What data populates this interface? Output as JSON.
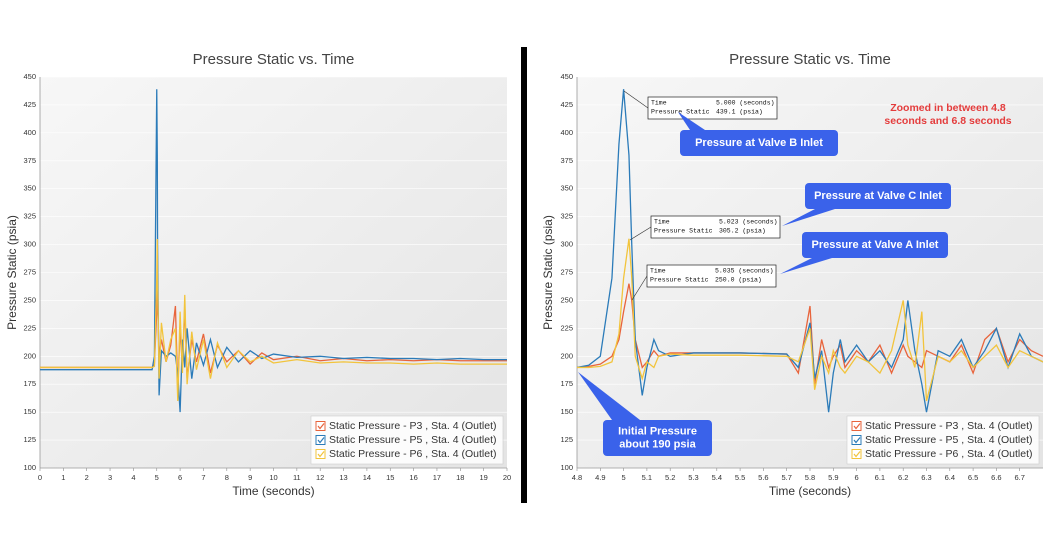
{
  "chart_data": [
    {
      "type": "line",
      "title": "Pressure Static vs. Time",
      "xlabel": "Time (seconds)",
      "ylabel": "Pressure Static (psia)",
      "xlim": [
        0,
        20
      ],
      "xticks": [
        0,
        1,
        2,
        3,
        4,
        5,
        6,
        7,
        8,
        9,
        10,
        11,
        12,
        13,
        14,
        15,
        16,
        17,
        18,
        19,
        20
      ],
      "ylim": [
        100,
        450
      ],
      "yticks": [
        100,
        125,
        150,
        175,
        200,
        225,
        250,
        275,
        300,
        325,
        350,
        375,
        400,
        425,
        450
      ],
      "grid": true,
      "legend": "lower right",
      "x": [
        0,
        4.8,
        4.9,
        5,
        5.023,
        5.035,
        5.1,
        5.2,
        5.4,
        5.6,
        5.8,
        5.9,
        6,
        6.1,
        6.2,
        6.3,
        6.5,
        6.7,
        7,
        7.3,
        7.6,
        8,
        8.5,
        9,
        9.5,
        10,
        11,
        12,
        13,
        14,
        15,
        16,
        17,
        18,
        19,
        20
      ],
      "series": [
        {
          "name": "Static Pressure - P3 , Sta. 4 (Outlet)",
          "color": "#e8643c",
          "values": [
            190,
            190,
            193,
            240,
            265,
            250,
            200,
            215,
            195,
            210,
            245,
            170,
            225,
            190,
            245,
            180,
            215,
            195,
            220,
            185,
            210,
            195,
            205,
            193,
            203,
            197,
            200,
            196,
            198,
            196,
            197,
            196,
            197,
            196,
            196,
            196
          ]
        },
        {
          "name": "Static Pressure - P5 , Sta. 4 (Outlet)",
          "color": "#2b7bb9",
          "values": [
            188,
            188,
            200,
            439,
            380,
            300,
            165,
            205,
            200,
            203,
            200,
            185,
            150,
            215,
            190,
            225,
            180,
            212,
            192,
            215,
            190,
            208,
            195,
            205,
            198,
            202,
            199,
            200,
            198,
            199,
            198,
            198,
            197,
            198,
            197,
            197
          ]
        },
        {
          "name": "Static Pressure - P6 , Sta. 4 (Outlet)",
          "color": "#f2c43c",
          "values": [
            190,
            190,
            191,
            270,
            305,
            270,
            180,
            230,
            195,
            215,
            225,
            160,
            240,
            185,
            255,
            175,
            222,
            188,
            215,
            180,
            212,
            190,
            205,
            195,
            200,
            194,
            197,
            194,
            195,
            194,
            194,
            193,
            194,
            193,
            193,
            193
          ]
        }
      ]
    },
    {
      "type": "line",
      "title": "Pressure Static vs. Time",
      "xlabel": "Time (seconds)",
      "ylabel": "Pressure Static (psia)",
      "xlim": [
        4.8,
        6.8
      ],
      "xticks": [
        4.8,
        4.9,
        5,
        5.1,
        5.2,
        5.3,
        5.4,
        5.5,
        5.6,
        5.7,
        5.8,
        5.9,
        6,
        6.1,
        6.2,
        6.3,
        6.4,
        6.5,
        6.6,
        6.7
      ],
      "ylim": [
        100,
        450
      ],
      "yticks": [
        100,
        125,
        150,
        175,
        200,
        225,
        250,
        275,
        300,
        325,
        350,
        375,
        400,
        425,
        450
      ],
      "grid": true,
      "legend": "lower right",
      "x": [
        4.8,
        4.85,
        4.9,
        4.95,
        4.98,
        5,
        5.023,
        5.035,
        5.05,
        5.08,
        5.1,
        5.13,
        5.15,
        5.2,
        5.3,
        5.5,
        5.7,
        5.75,
        5.8,
        5.82,
        5.85,
        5.88,
        5.9,
        5.93,
        5.95,
        6,
        6.05,
        6.1,
        6.15,
        6.2,
        6.22,
        6.25,
        6.28,
        6.3,
        6.35,
        6.4,
        6.45,
        6.5,
        6.55,
        6.6,
        6.65,
        6.7,
        6.75,
        6.8
      ],
      "series": [
        {
          "name": "Static Pressure - P3 , Sta. 4 (Outlet)",
          "color": "#e8643c",
          "values": [
            190,
            191,
            193,
            200,
            215,
            240,
            265,
            250,
            215,
            190,
            195,
            205,
            200,
            203,
            203,
            203,
            202,
            185,
            245,
            175,
            215,
            190,
            200,
            210,
            190,
            205,
            195,
            210,
            185,
            210,
            200,
            195,
            190,
            205,
            200,
            195,
            210,
            185,
            215,
            225,
            195,
            215,
            205,
            200
          ]
        },
        {
          "name": "Static Pressure - P5 , Sta. 4 (Outlet)",
          "color": "#2b7bb9",
          "values": [
            190,
            192,
            200,
            270,
            390,
            439.1,
            380,
            300,
            215,
            165,
            190,
            215,
            205,
            200,
            203,
            203,
            202,
            190,
            230,
            180,
            205,
            150,
            185,
            215,
            195,
            210,
            195,
            205,
            190,
            215,
            250,
            205,
            175,
            150,
            205,
            200,
            215,
            190,
            205,
            225,
            190,
            220,
            200,
            195
          ]
        },
        {
          "name": "Static Pressure - P6 , Sta. 4 (Outlet)",
          "color": "#f2c43c",
          "values": [
            190,
            190,
            191,
            195,
            220,
            270,
            305.2,
            270,
            200,
            180,
            195,
            190,
            200,
            202,
            201,
            201,
            200,
            195,
            225,
            170,
            200,
            185,
            205,
            190,
            185,
            200,
            195,
            185,
            205,
            250,
            210,
            190,
            240,
            160,
            200,
            195,
            205,
            190,
            200,
            210,
            190,
            205,
            200,
            195
          ]
        }
      ],
      "tooltips": [
        {
          "rows": [
            [
              "Time",
              "5.000 (seconds)"
            ],
            [
              "Pressure Static",
              "439.1 (psia)"
            ]
          ]
        },
        {
          "rows": [
            [
              "Time",
              "5.023 (seconds)"
            ],
            [
              "Pressure Static",
              "305.2 (psia)"
            ]
          ]
        },
        {
          "rows": [
            [
              "Time",
              "5.035 (seconds)"
            ],
            [
              "Pressure Static",
              "250.0 (psia)"
            ]
          ]
        }
      ],
      "callouts": [
        {
          "lines": [
            "Pressure at Valve B Inlet"
          ]
        },
        {
          "lines": [
            "Pressure at Valve C Inlet"
          ]
        },
        {
          "lines": [
            "Pressure at Valve A Inlet"
          ]
        },
        {
          "lines": [
            "Initial Pressure",
            "about 190 psia"
          ]
        }
      ],
      "note": {
        "lines": [
          "Zoomed in between 4.8",
          "seconds and 6.8 seconds"
        ]
      }
    }
  ]
}
